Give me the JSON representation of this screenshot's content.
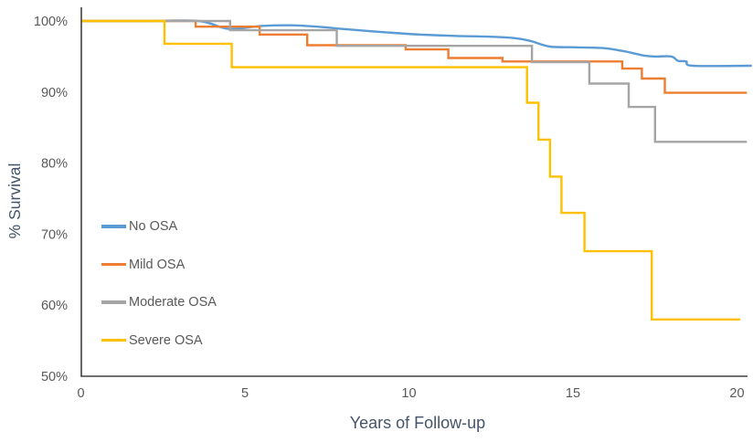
{
  "chart_data": {
    "type": "line",
    "subtype": "kaplan-meier-survival-steps",
    "title": "",
    "xlabel": "Years of Follow-up",
    "ylabel": "% Survival",
    "xlim": [
      0,
      20.3
    ],
    "ylim": [
      50,
      102
    ],
    "grid": false,
    "legend_position": "inside-left",
    "x_ticks": {
      "values": [
        0,
        5,
        10,
        15,
        20
      ],
      "labels": [
        "0",
        "5",
        "10",
        "15",
        "20"
      ]
    },
    "y_ticks": {
      "values": [
        100,
        90,
        80,
        70,
        60,
        50
      ],
      "labels": [
        "100%",
        "90%",
        "80%",
        "70%",
        "60%",
        "50%"
      ]
    },
    "series": [
      {
        "name": "No OSA",
        "color": "#5B9BD5",
        "style": "smooth",
        "end_x": 20.3,
        "points": [
          [
            0,
            100
          ],
          [
            2,
            100
          ],
          [
            3.6,
            100
          ],
          [
            4.5,
            98.9
          ],
          [
            5.5,
            99.3
          ],
          [
            6.4,
            99.4
          ],
          [
            7.2,
            99.2
          ],
          [
            8.2,
            98.8
          ],
          [
            9.3,
            98.4
          ],
          [
            10.3,
            98.1
          ],
          [
            11.4,
            97.9
          ],
          [
            12.4,
            97.8
          ],
          [
            13.2,
            97.6
          ],
          [
            13.7,
            97.2
          ],
          [
            14.3,
            96.4
          ],
          [
            15.1,
            96.3
          ],
          [
            15.9,
            96.2
          ],
          [
            16.5,
            95.8
          ],
          [
            16.9,
            95.4
          ],
          [
            17.2,
            95.1
          ],
          [
            17.5,
            95.0
          ],
          [
            18.0,
            95.0
          ],
          [
            18.2,
            94.4
          ],
          [
            18.45,
            94.3
          ],
          [
            18.65,
            93.7
          ],
          [
            20.3,
            93.7
          ]
        ]
      },
      {
        "name": "Mild OSA",
        "color": "#ED7D31",
        "style": "step",
        "end_x": 20.3,
        "points": [
          [
            0,
            100
          ],
          [
            3.5,
            99.2
          ],
          [
            5.45,
            98.1
          ],
          [
            6.9,
            96.6
          ],
          [
            9.9,
            96.0
          ],
          [
            11.2,
            94.8
          ],
          [
            12.85,
            94.3
          ],
          [
            16.5,
            93.3
          ],
          [
            17.1,
            91.9
          ],
          [
            17.8,
            89.9
          ]
        ]
      },
      {
        "name": "Moderate OSA",
        "color": "#A5A5A5",
        "style": "step",
        "end_x": 20.3,
        "points": [
          [
            0,
            100
          ],
          [
            4.55,
            98.7
          ],
          [
            7.8,
            96.5
          ],
          [
            13.75,
            94.2
          ],
          [
            15.5,
            91.2
          ],
          [
            16.7,
            87.9
          ],
          [
            17.5,
            83.0
          ]
        ]
      },
      {
        "name": "Severe OSA",
        "color": "#FFC000",
        "style": "step",
        "end_x": 20.1,
        "points": [
          [
            0,
            100
          ],
          [
            2.55,
            96.8
          ],
          [
            4.6,
            93.5
          ],
          [
            13.6,
            88.5
          ],
          [
            13.95,
            83.3
          ],
          [
            14.3,
            78.1
          ],
          [
            14.65,
            73.0
          ],
          [
            15.35,
            67.6
          ],
          [
            17.4,
            58.0
          ]
        ]
      }
    ]
  },
  "legend": {
    "items": [
      "No OSA",
      "Mild OSA",
      "Moderate OSA",
      "Severe OSA"
    ]
  },
  "colors": {
    "background": "#FFFFFF",
    "axis_line": "#404040",
    "tick_label_text": "#595959",
    "axis_title_text": "#44546A",
    "legend_text": "#595959"
  }
}
